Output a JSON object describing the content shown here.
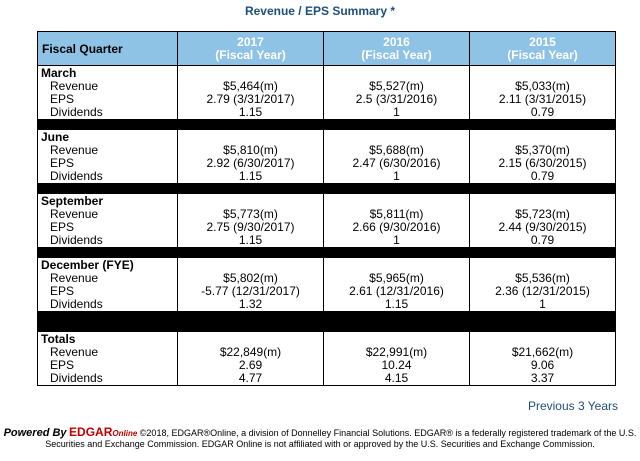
{
  "title": "Revenue / EPS Summary *",
  "header": {
    "fiscal_quarter": "Fiscal Quarter",
    "years": [
      {
        "year": "2017",
        "label": "(Fiscal Year)"
      },
      {
        "year": "2016",
        "label": "(Fiscal Year)"
      },
      {
        "year": "2015",
        "label": "(Fiscal Year)"
      }
    ]
  },
  "sections": [
    {
      "name": "March",
      "rows": [
        {
          "label": "Revenue",
          "values": [
            "$5,464(m)",
            "$5,527(m)",
            "$5,033(m)"
          ]
        },
        {
          "label": "EPS",
          "values": [
            "2.79 (3/31/2017)",
            "2.5 (3/31/2016)",
            "2.11 (3/31/2015)"
          ]
        },
        {
          "label": "Dividends",
          "values": [
            "1.15",
            "1",
            "0.79"
          ]
        }
      ]
    },
    {
      "name": "June",
      "rows": [
        {
          "label": "Revenue",
          "values": [
            "$5,810(m)",
            "$5,688(m)",
            "$5,370(m)"
          ]
        },
        {
          "label": "EPS",
          "values": [
            "2.92 (6/30/2017)",
            "2.47 (6/30/2016)",
            "2.15 (6/30/2015)"
          ]
        },
        {
          "label": "Dividends",
          "values": [
            "1.15",
            "1",
            "0.79"
          ]
        }
      ]
    },
    {
      "name": "September",
      "rows": [
        {
          "label": "Revenue",
          "values": [
            "$5,773(m)",
            "$5,811(m)",
            "$5,723(m)"
          ]
        },
        {
          "label": "EPS",
          "values": [
            "2.75 (9/30/2017)",
            "2.66 (9/30/2016)",
            "2.44 (9/30/2015)"
          ]
        },
        {
          "label": "Dividends",
          "values": [
            "1.15",
            "1",
            "0.79"
          ]
        }
      ]
    },
    {
      "name": "December  (FYE)",
      "rows": [
        {
          "label": "Revenue",
          "values": [
            "$5,802(m)",
            "$5,965(m)",
            "$5,536(m)"
          ]
        },
        {
          "label": "EPS",
          "values": [
            "-5.77 (12/31/2017)",
            "2.61 (12/31/2016)",
            "2.36 (12/31/2015)"
          ]
        },
        {
          "label": "Dividends",
          "values": [
            "1.32",
            "1.15",
            "1"
          ]
        }
      ]
    },
    {
      "name": "Totals",
      "rows": [
        {
          "label": "Revenue",
          "values": [
            "$22,849(m)",
            "$22,991(m)",
            "$21,662(m)"
          ]
        },
        {
          "label": "EPS",
          "values": [
            "2.69",
            "10.24",
            "9.06"
          ]
        },
        {
          "label": "Dividends",
          "values": [
            "4.77",
            "4.15",
            "3.37"
          ]
        }
      ]
    }
  ],
  "previous_link": "Previous 3 Years",
  "footer": {
    "powered_by": "Powered By",
    "brand": "EDGAR",
    "brand_suffix": "Online",
    "text": "©2018, EDGAR®Online, a division of Donnelley Financial Solutions. EDGAR® is a federally registered trademark of the U.S. Securities and Exchange Commission. EDGAR Online is not affiliated with or approved by the U.S. Securities and Exchange Commission."
  }
}
